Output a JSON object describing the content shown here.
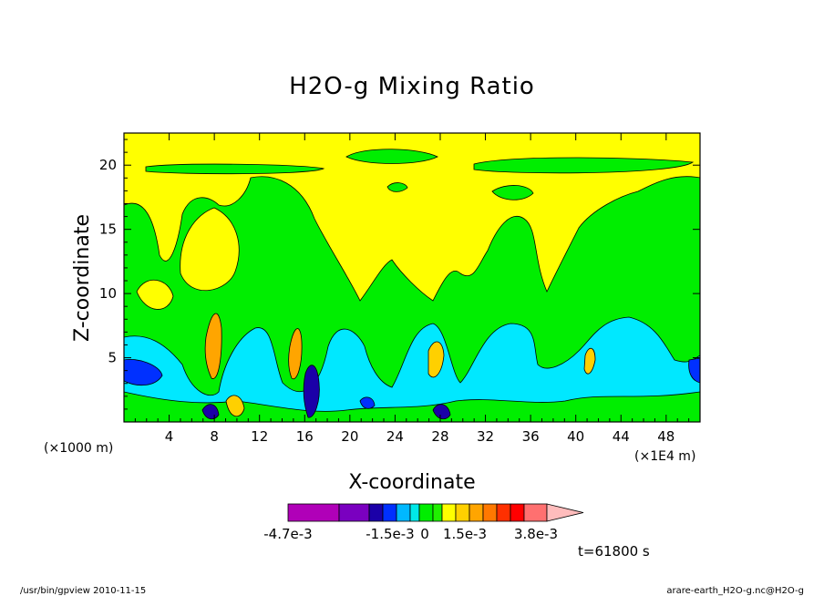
{
  "chart_data": {
    "type": "heatmap",
    "title": "H2O-g Mixing Ratio",
    "xlabel": "X-coordinate",
    "ylabel": "Z-coordinate",
    "x_unit_left": "(×1000 m)",
    "x_unit_right": "(×1E4 m)",
    "xlim": [
      0,
      51
    ],
    "ylim": [
      0,
      22.5
    ],
    "x_ticks": [
      "4",
      "8",
      "12",
      "16",
      "20",
      "24",
      "28",
      "32",
      "36",
      "40",
      "44",
      "48"
    ],
    "x_tick_values": [
      4,
      8,
      12,
      16,
      20,
      24,
      28,
      32,
      36,
      40,
      44,
      48
    ],
    "y_ticks": [
      "5",
      "10",
      "15",
      "20"
    ],
    "y_tick_values": [
      5,
      10,
      15,
      20
    ],
    "grid": false,
    "colorbar": {
      "colors": [
        "#b000b8",
        "#7a00c0",
        "#1b00a8",
        "#0030ff",
        "#00b8ff",
        "#00e8e8",
        "#00ee00",
        "#20f000",
        "#ffff00",
        "#ffd000",
        "#ffa500",
        "#ff7800",
        "#ff3000",
        "#ff0000",
        "#ff7070",
        "#ffbcbc"
      ],
      "labels": [
        "-4.7e-3",
        "-1.5e-3",
        "0",
        "1.5e-3",
        "3.8e-3"
      ],
      "extend": "max"
    },
    "regions_note": "lower cyan/blue moist layer below z≈7, green mid layer, yellow upper region up to z≈22",
    "time_label": "t=61800 s"
  },
  "footer": {
    "left": "/usr/bin/gpview   2010-11-15",
    "right": "arare-earth_H2O-g.nc@H2O-g"
  }
}
